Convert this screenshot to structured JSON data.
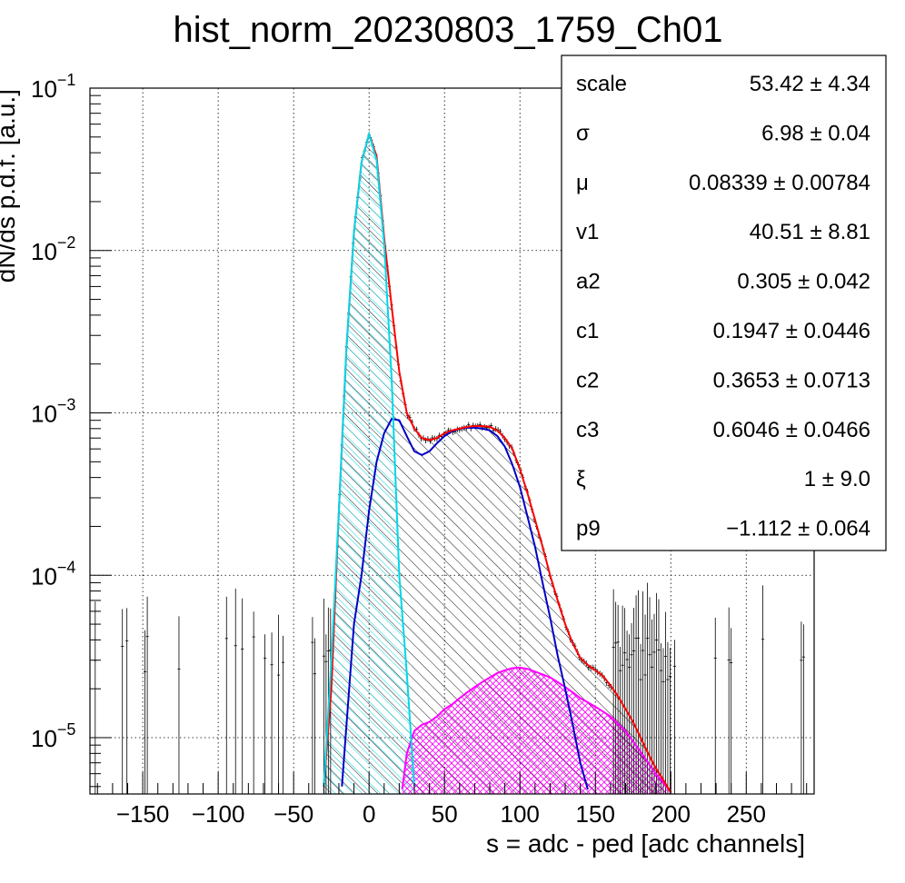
{
  "chart_data": {
    "type": "histogram",
    "title": "hist_norm_20230803_1759_Ch01",
    "xlabel": "s = adc - ped [adc channels]",
    "ylabel": "dN/ds p.d.f. [a.u.]",
    "xlim": [
      -185,
      295
    ],
    "ylim": [
      4.5e-06,
      0.1
    ],
    "yscale": "log",
    "grid": true,
    "x_ticks": [
      -150,
      -100,
      -50,
      0,
      50,
      100,
      150,
      200,
      250
    ],
    "y_ticks": [
      {
        "value": 1e-05,
        "base": "10",
        "exp": "−5"
      },
      {
        "value": 0.0001,
        "base": "10",
        "exp": "−4"
      },
      {
        "value": 0.001,
        "base": "10",
        "exp": "−3"
      },
      {
        "value": 0.01,
        "base": "10",
        "exp": "−2"
      },
      {
        "value": 0.1,
        "base": "10",
        "exp": "−1"
      }
    ],
    "stats_box": {
      "placement": "top-right",
      "rows": [
        {
          "name": "scale",
          "value": "53.42 ± 4.34"
        },
        {
          "name": "σ",
          "value": "6.98 ± 0.04"
        },
        {
          "name": "μ",
          "value": "0.08339 ± 0.00784"
        },
        {
          "name": "v1",
          "value": "40.51 ± 8.81"
        },
        {
          "name": "a2",
          "value": "0.305 ± 0.042"
        },
        {
          "name": "c1",
          "value": "0.1947 ± 0.0446"
        },
        {
          "name": "c2",
          "value": "0.3653 ± 0.0713"
        },
        {
          "name": "c3",
          "value": "0.6046 ± 0.0466"
        },
        {
          "name": "ξ",
          "value": "1 ± 9.0"
        },
        {
          "name": "p9",
          "value": "−1.112 ± 0.064"
        }
      ]
    },
    "series": [
      {
        "role": "total-fit",
        "color": "#ff0000",
        "x": [
          -30,
          -25,
          -20,
          -15,
          -10,
          -5,
          0,
          5,
          10,
          15,
          20,
          25,
          30,
          35,
          40,
          45,
          50,
          55,
          60,
          65,
          70,
          75,
          80,
          85,
          90,
          95,
          100,
          105,
          110,
          115,
          120,
          125,
          130,
          135,
          140,
          145,
          150,
          155,
          160,
          165,
          170,
          175,
          180,
          185,
          190,
          195,
          200
        ],
        "y": [
          5e-06,
          2e-05,
          0.00025,
          0.0025,
          0.013,
          0.035,
          0.052,
          0.038,
          0.012,
          0.0045,
          0.0018,
          0.001,
          0.0008,
          0.0007,
          0.00068,
          0.0007,
          0.00075,
          0.00078,
          0.0008,
          0.00082,
          0.00083,
          0.00083,
          0.00082,
          0.00078,
          0.0007,
          0.0006,
          0.00045,
          0.00032,
          0.00022,
          0.00015,
          0.0001,
          7e-05,
          5e-05,
          3.8e-05,
          3.1e-05,
          2.8e-05,
          2.6e-05,
          2.4e-05,
          2.1e-05,
          1.8e-05,
          1.5e-05,
          1.25e-05,
          1e-05,
          8e-06,
          6.5e-06,
          5.5e-06,
          4.6e-06
        ]
      },
      {
        "role": "pedestal-gaussian",
        "color": "#00d8e8",
        "x": [
          -30,
          -25,
          -20,
          -15,
          -10,
          -5,
          0,
          5,
          10,
          15,
          20,
          25,
          30
        ],
        "y": [
          5e-06,
          3e-05,
          0.00025,
          0.0025,
          0.013,
          0.035,
          0.052,
          0.036,
          0.011,
          0.0016,
          0.0001,
          2.5e-05,
          5e-06
        ]
      },
      {
        "role": "single-photoelectron",
        "color": "#0000c8",
        "x": [
          -18,
          -10,
          -5,
          0,
          5,
          10,
          15,
          20,
          25,
          30,
          35,
          40,
          45,
          50,
          55,
          60,
          65,
          70,
          75,
          80,
          85,
          90,
          95,
          100,
          105,
          110,
          115,
          120,
          125,
          130,
          135,
          140,
          145
        ],
        "y": [
          5e-06,
          5e-05,
          0.0001,
          0.00025,
          0.0005,
          0.00075,
          0.00092,
          0.0009,
          0.00072,
          0.00058,
          0.00055,
          0.00058,
          0.00065,
          0.00072,
          0.00077,
          0.0008,
          0.00081,
          0.00081,
          0.0008,
          0.00078,
          0.00072,
          0.00062,
          0.00048,
          0.00035,
          0.00023,
          0.00015,
          9e-05,
          5.5e-05,
          3.2e-05,
          2e-05,
          1.2e-05,
          7e-06,
          4.8e-06
        ]
      },
      {
        "role": "two-photoelectron",
        "color": "#ff00ff",
        "x": [
          22,
          25,
          30,
          35,
          40,
          45,
          50,
          55,
          60,
          65,
          70,
          75,
          80,
          85,
          90,
          95,
          100,
          105,
          110,
          115,
          120,
          125,
          130,
          135,
          140,
          145,
          150,
          155,
          160,
          165,
          170,
          175,
          180,
          185,
          190,
          195,
          200
        ],
        "y": [
          4.8e-06,
          8e-06,
          1.1e-05,
          1.2e-05,
          1.25e-05,
          1.35e-05,
          1.5e-05,
          1.6e-05,
          1.75e-05,
          1.9e-05,
          2.05e-05,
          2.2e-05,
          2.35e-05,
          2.5e-05,
          2.6e-05,
          2.68e-05,
          2.7e-05,
          2.65e-05,
          2.55e-05,
          2.45e-05,
          2.35e-05,
          2.2e-05,
          2.05e-05,
          1.9e-05,
          1.75e-05,
          1.65e-05,
          1.55e-05,
          1.45e-05,
          1.35e-05,
          1.22e-05,
          1.1e-05,
          9.5e-06,
          8.2e-06,
          7e-06,
          6e-06,
          5.3e-06,
          4.6e-06
        ]
      }
    ]
  }
}
